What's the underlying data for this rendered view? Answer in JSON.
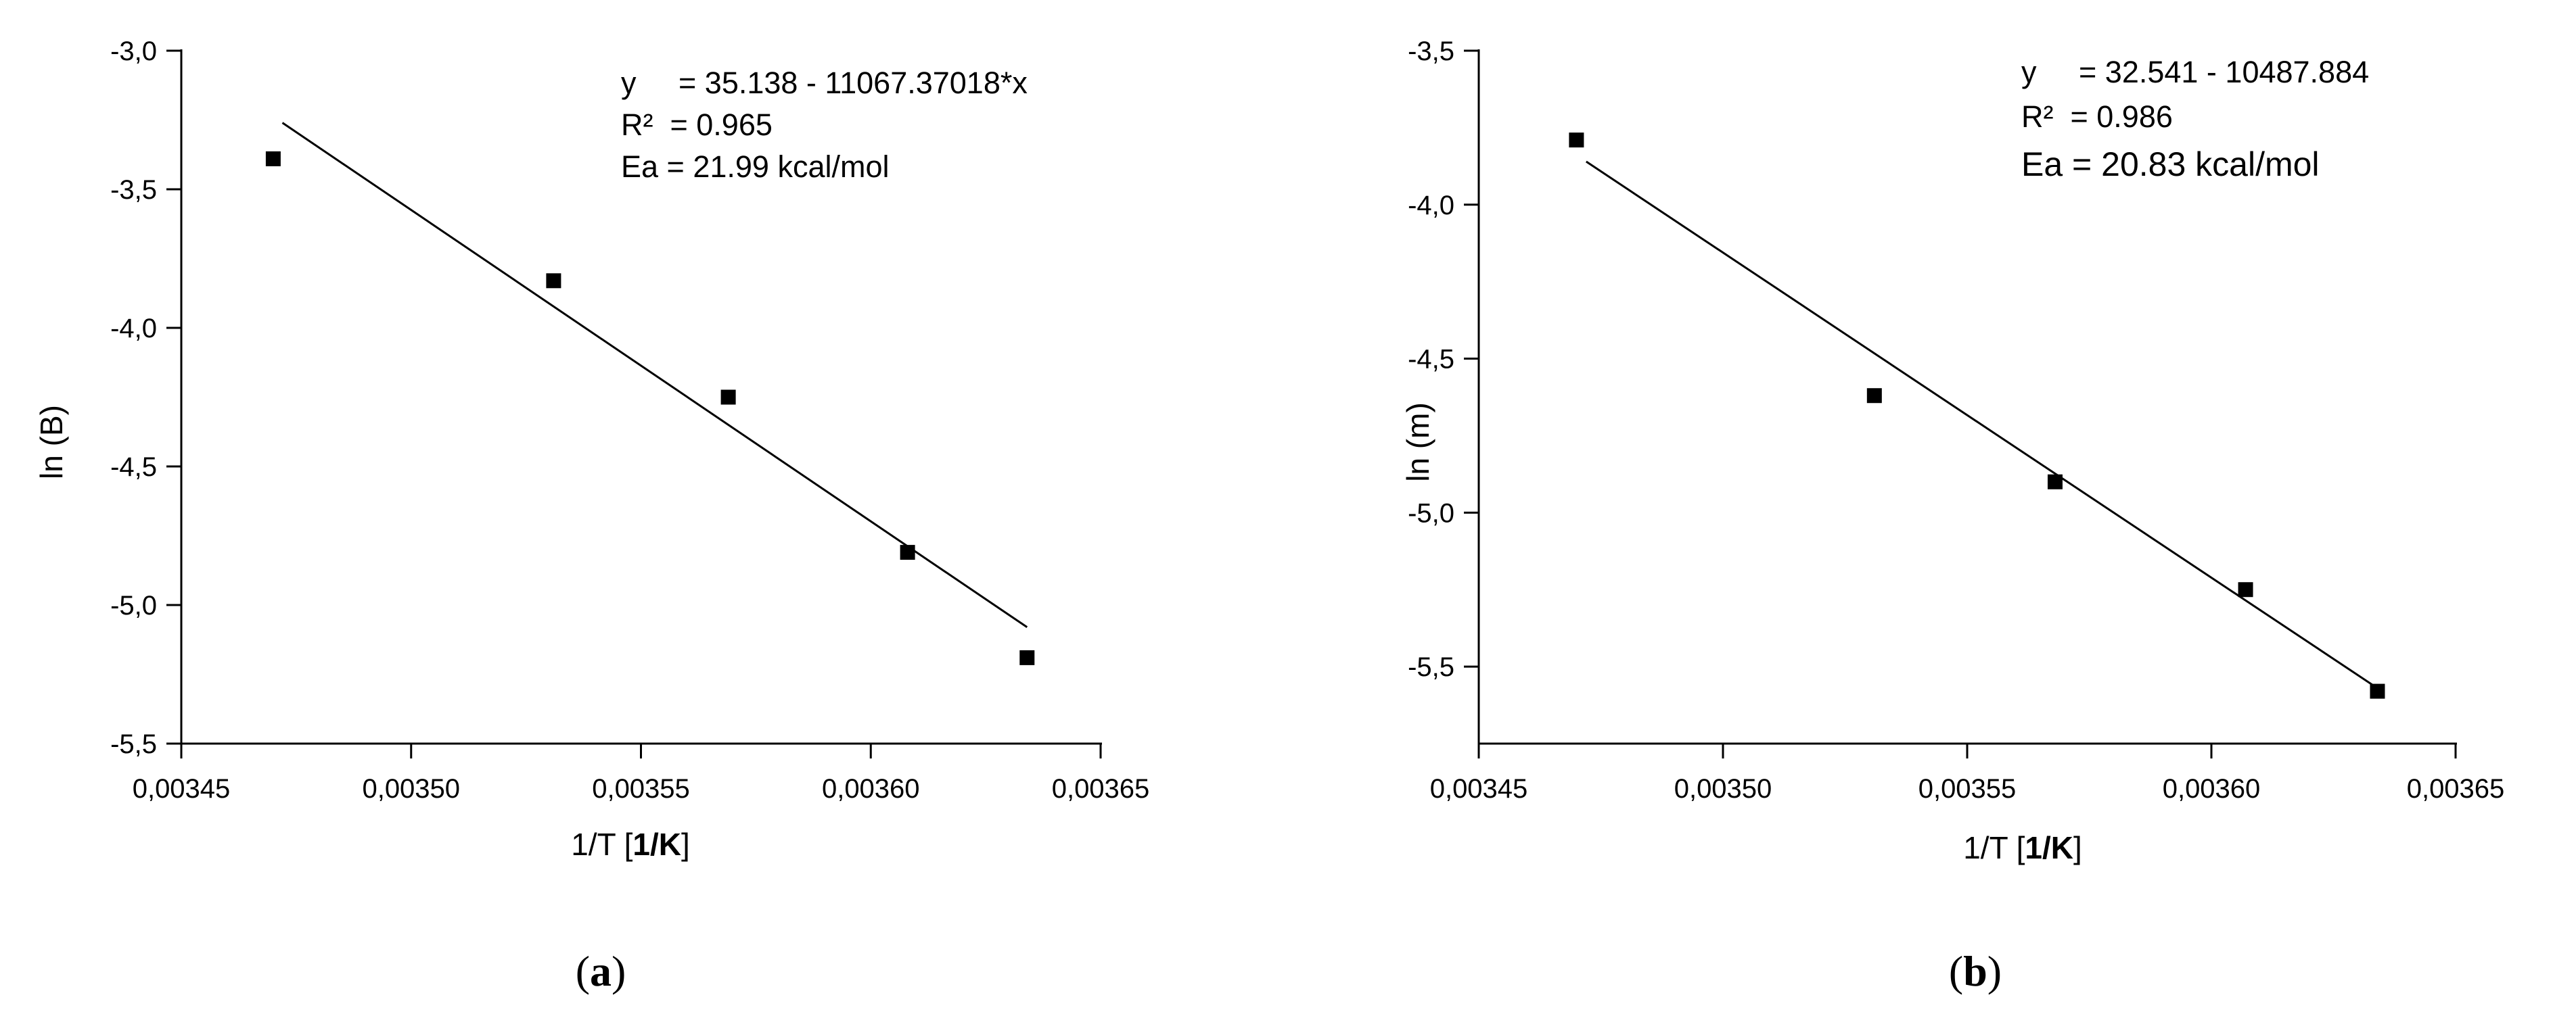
{
  "chart_data": [
    {
      "type": "scatter",
      "panel_label_open": "(",
      "panel_label_letter": "a",
      "panel_label_close": ")",
      "xlabel_plain": "1/T [",
      "xlabel_bold": "1/K",
      "xlabel_end": "]",
      "ylabel": "ln (B)",
      "xlim": [
        0.00345,
        0.00365
      ],
      "ylim": [
        -5.5,
        -3.0
      ],
      "xticks": [
        0.00345,
        0.0035,
        0.00355,
        0.0036,
        0.00365
      ],
      "xtick_labels": [
        "0,00345",
        "0,00350",
        "0,00355",
        "0,00360",
        "0,00365"
      ],
      "yticks": [
        -3.0,
        -3.5,
        -4.0,
        -4.5,
        -5.0,
        -5.5
      ],
      "ytick_labels": [
        "-3,0",
        "-3,5",
        "-4,0",
        "-4,5",
        "-5,0",
        "-5,5"
      ],
      "series": [
        {
          "x": [
            0.00347,
            0.003531,
            0.003569,
            0.003608,
            0.003634
          ],
          "y": [
            -3.39,
            -3.83,
            -4.25,
            -4.81,
            -5.19
          ]
        }
      ],
      "fit": {
        "x": [
          0.003472,
          0.003634
        ],
        "y": [
          -3.26,
          -5.08
        ]
      },
      "annotations": [
        "y     = 35.138 - 11067.37018*x",
        "R²  = 0.965",
        "Ea = 21.99 kcal/mol"
      ],
      "grid": false
    },
    {
      "type": "scatter",
      "panel_label_open": "(",
      "panel_label_letter": "b",
      "panel_label_close": ")",
      "xlabel_plain": "1/T [",
      "xlabel_bold": "1/K",
      "xlabel_end": "]",
      "ylabel": "ln (m)",
      "xlim": [
        0.00345,
        0.00365
      ],
      "ylim": [
        -5.75,
        -3.5
      ],
      "xticks": [
        0.00345,
        0.0035,
        0.00355,
        0.0036,
        0.00365
      ],
      "xtick_labels": [
        "0,00345",
        "0,00350",
        "0,00355",
        "0,00360",
        "0,00365"
      ],
      "yticks": [
        -3.5,
        -4.0,
        -4.5,
        -5.0,
        -5.5
      ],
      "ytick_labels": [
        "-3,5",
        "-4,0",
        "-4,5",
        "-5,0",
        "-5,5"
      ],
      "series": [
        {
          "x": [
            0.00347,
            0.003531,
            0.003568,
            0.003607,
            0.003634
          ],
          "y": [
            -3.79,
            -4.62,
            -4.9,
            -5.25,
            -5.58
          ]
        }
      ],
      "fit": {
        "x": [
          0.003472,
          0.003634
        ],
        "y": [
          -3.86,
          -5.57
        ]
      },
      "annotations": [
        "y     = 32.541 - 10487.884",
        "R²  = 0.986",
        "Ea = 20.83 kcal/mol"
      ],
      "grid": false
    }
  ]
}
